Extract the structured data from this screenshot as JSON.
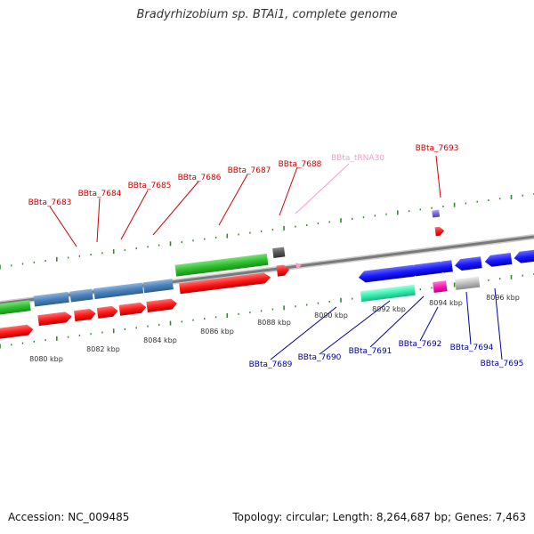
{
  "title": "Bradyrhizobium sp. BTAi1, complete genome",
  "footer": {
    "accession_label": "Accession:",
    "accession": "NC_009485",
    "topology_label": "Topology:",
    "topology": "circular",
    "length_label": "Length:",
    "length": "8,264,687 bp",
    "genes_label": "Genes:",
    "genes": "7,463"
  },
  "colors": {
    "forward_label": "#cc0000",
    "reverse_label": "#000099",
    "trna_label": "#ff99cc",
    "tick": "#2e8b2e",
    "backbone": "#888888"
  },
  "top_labels": [
    {
      "text": "BBta_7683",
      "color": "#cc0000"
    },
    {
      "text": "BBta_7684",
      "color": "#cc0000"
    },
    {
      "text": "BBta_7685",
      "color": "#cc0000"
    },
    {
      "text": "BBta_7686",
      "color": "#cc0000"
    },
    {
      "text": "BBta_7687",
      "color": "#cc0000"
    },
    {
      "text": "BBta_7688",
      "color": "#cc0000"
    },
    {
      "text": "BBta_tRNA30",
      "color": "#ff99cc"
    },
    {
      "text": "BBta_7693",
      "color": "#cc0000"
    }
  ],
  "bottom_labels": [
    {
      "text": "BBta_7689",
      "color": "#000099"
    },
    {
      "text": "BBta_7690",
      "color": "#000099"
    },
    {
      "text": "BBta_7691",
      "color": "#000099"
    },
    {
      "text": "BBta_7692",
      "color": "#000099"
    },
    {
      "text": "BBta_7694",
      "color": "#000099"
    },
    {
      "text": "BBta_7695",
      "color": "#000099"
    }
  ],
  "kbp_ticks": [
    "8080 kbp",
    "8082 kbp",
    "8084 kbp",
    "8086 kbp",
    "8088 kbp",
    "8090 kbp",
    "8092 kbp",
    "8094 kbp",
    "8096 kbp"
  ]
}
